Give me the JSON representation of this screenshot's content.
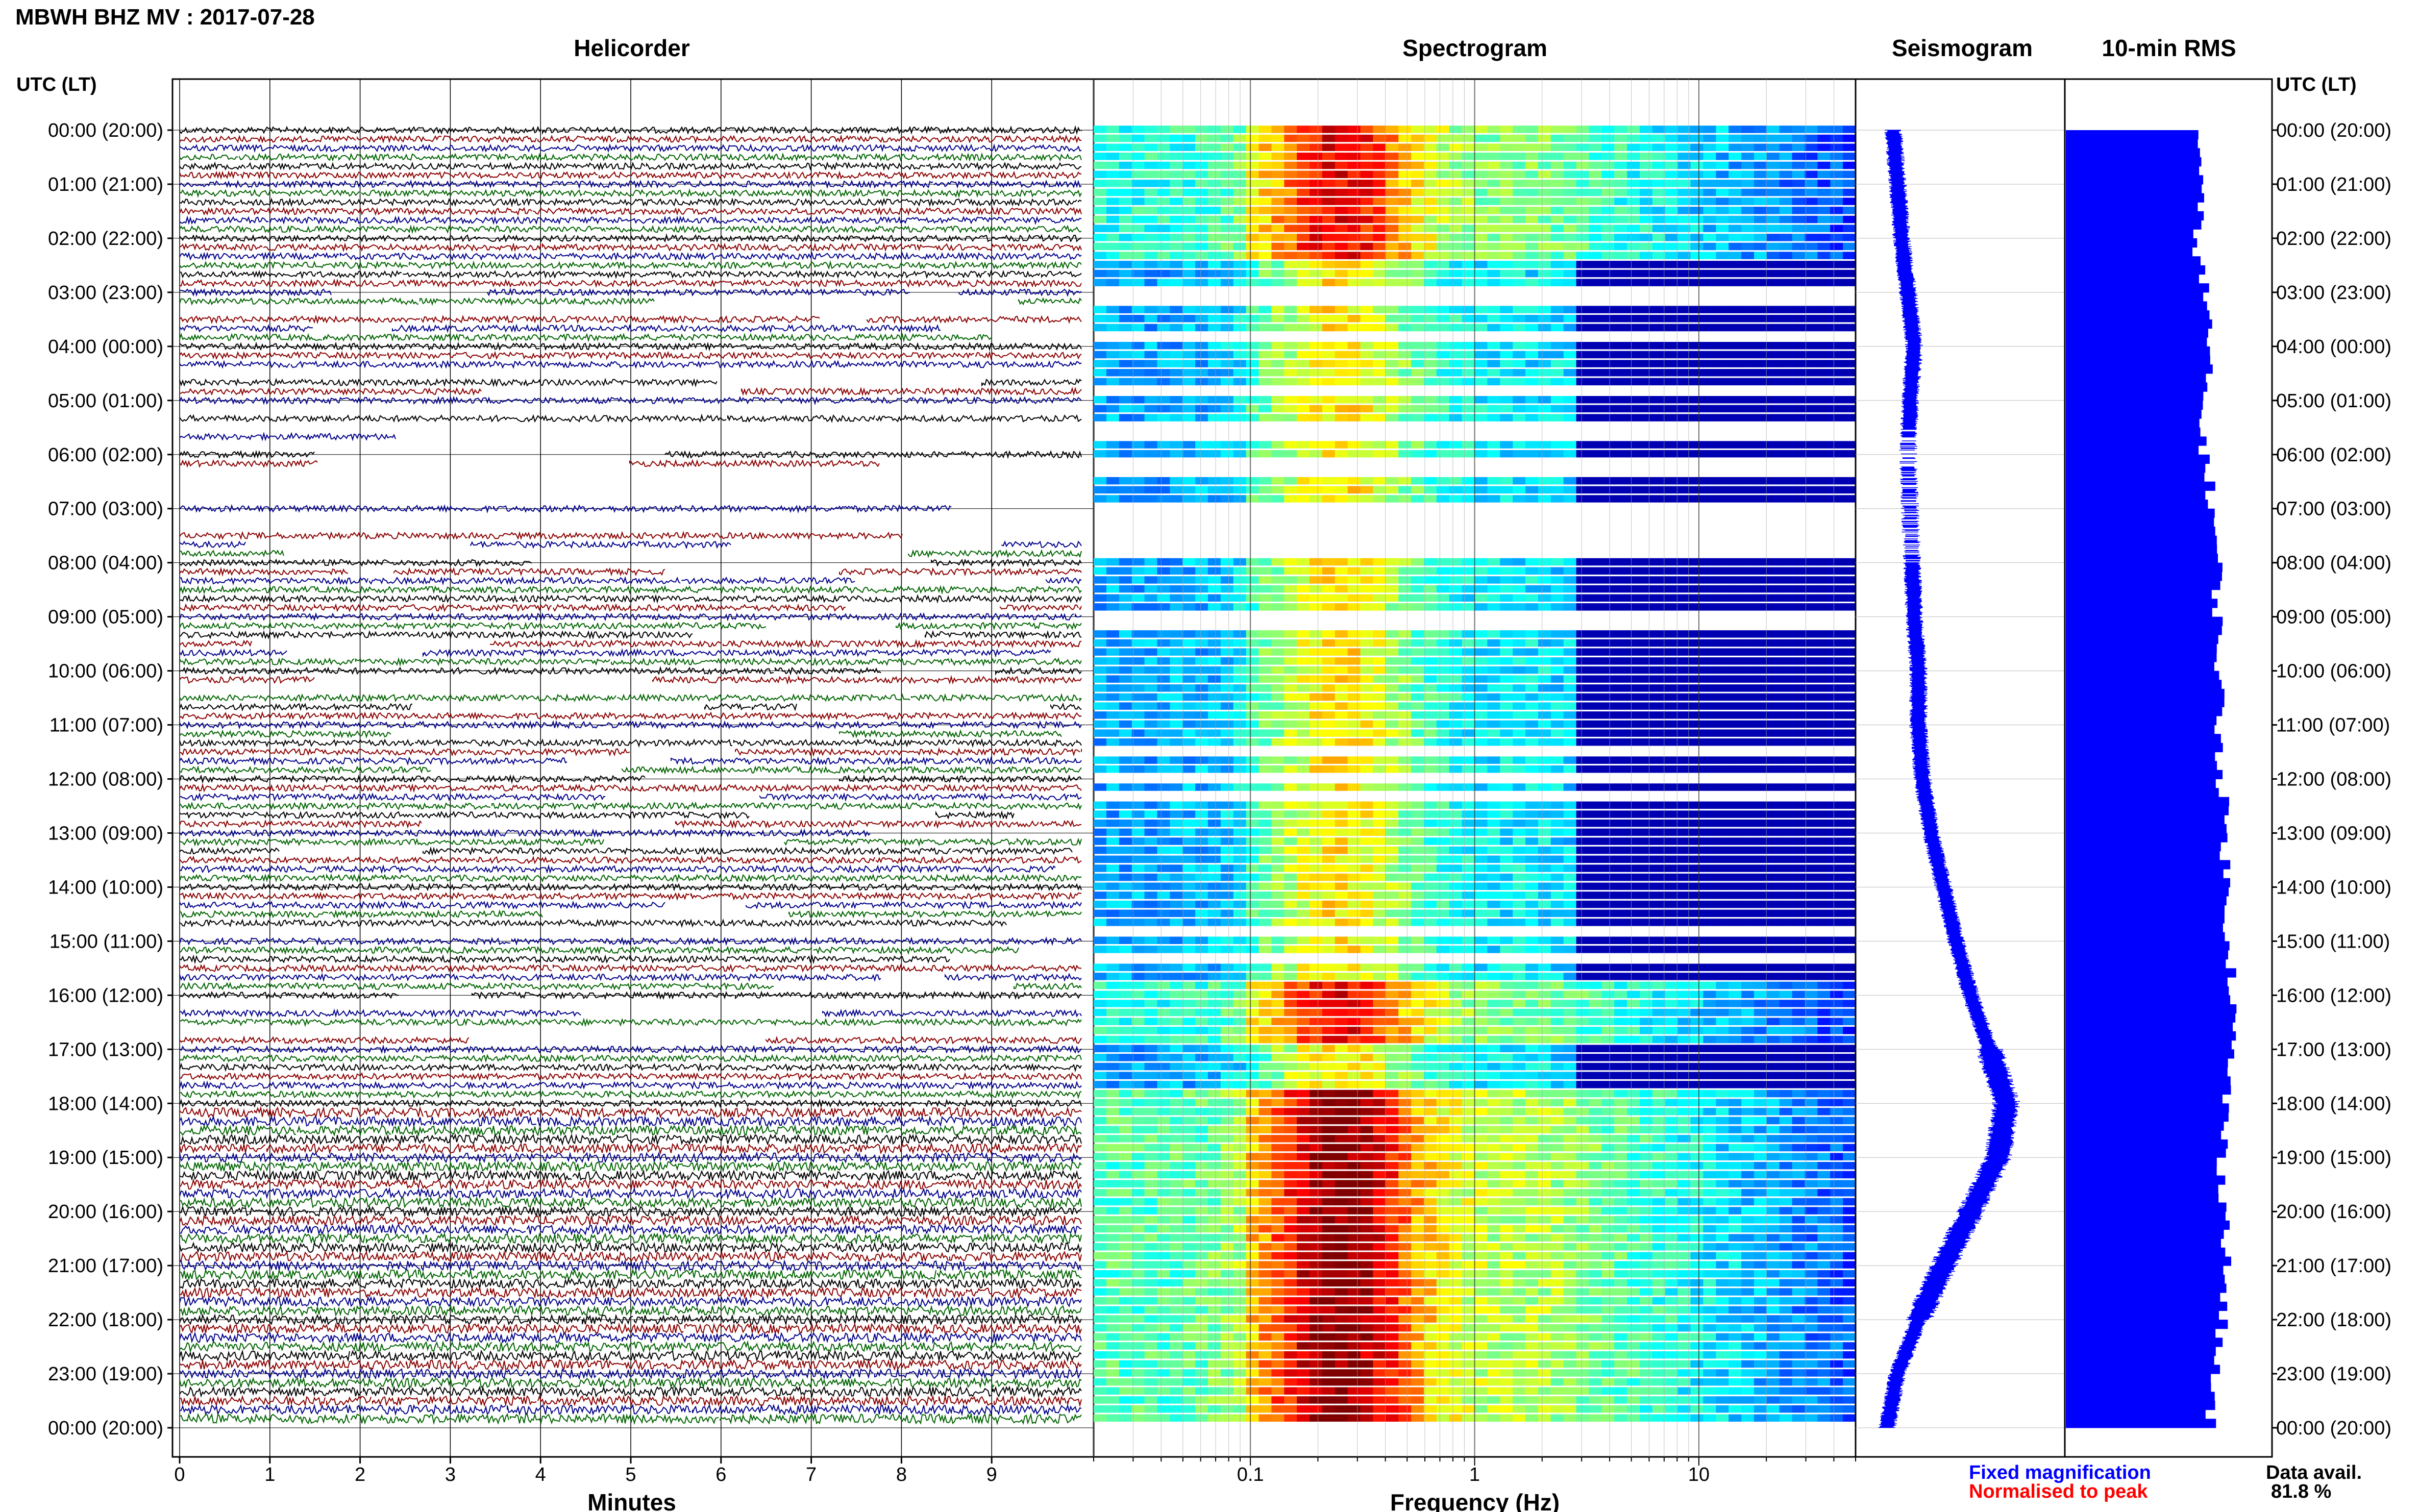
{
  "header": {
    "title": "MBWH BHZ MV : 2017-07-28"
  },
  "panels": {
    "helicorder": "Helicorder",
    "spectrogram": "Spectrogram",
    "seismogram": "Seismogram",
    "rms": "10-min RMS"
  },
  "axes": {
    "left_label": "UTC (LT)",
    "right_label": "UTC (LT)",
    "time_ticks": [
      "00:00 (20:00)",
      "01:00 (21:00)",
      "02:00 (22:00)",
      "03:00 (23:00)",
      "04:00 (00:00)",
      "05:00 (01:00)",
      "06:00 (02:00)",
      "07:00 (03:00)",
      "08:00 (04:00)",
      "09:00 (05:00)",
      "10:00 (06:00)",
      "11:00 (07:00)",
      "12:00 (08:00)",
      "13:00 (09:00)",
      "14:00 (10:00)",
      "15:00 (11:00)",
      "16:00 (12:00)",
      "17:00 (13:00)",
      "18:00 (14:00)",
      "19:00 (15:00)",
      "20:00 (16:00)",
      "21:00 (17:00)",
      "22:00 (18:00)",
      "23:00 (19:00)",
      "00:00 (20:00)"
    ],
    "minutes_ticks": [
      "0",
      "1",
      "2",
      "3",
      "4",
      "5",
      "6",
      "7",
      "8",
      "9"
    ],
    "minutes_label": "Minutes",
    "freq_ticks": [
      "0.1",
      "1",
      "10"
    ],
    "freq_label": "Frequency (Hz)"
  },
  "legend": {
    "fixed": "Fixed magnification",
    "normalised": "Normalised to peak",
    "fixed_color": "#0000ff",
    "normalised_color": "#ff0000"
  },
  "availability": {
    "label": "Data avail.",
    "value": "81.8 %"
  },
  "colors": {
    "trace_colors": [
      "#000000",
      "#8b0000",
      "#00008b",
      "#006400"
    ],
    "seismogram": "#0000ff",
    "rms": "#0000ff"
  },
  "chart_data": [
    {
      "type": "line",
      "title": "Helicorder",
      "xlabel": "Minutes",
      "xlim": [
        0,
        10
      ],
      "description_rows": "one trace per 10-minute window, 144 rows over 24 hours, colors cycle black, dark red, dark blue, green",
      "gaps": [
        {
          "hour": 3.0,
          "hour_end": 3.5,
          "coverage": 0.55
        },
        {
          "hour": 3.5,
          "hour_end": 5.5,
          "coverage": 0.8
        },
        {
          "hour": 5.5,
          "hour_end": 8.0,
          "coverage": 0.35
        },
        {
          "hour": 8.0,
          "hour_end": 17.0,
          "coverage": 0.85
        }
      ]
    },
    {
      "type": "heatmap",
      "title": "Spectrogram",
      "xlabel": "Frequency (Hz)",
      "xscale": "log",
      "xlim": [
        0.02,
        50
      ],
      "peak_frequency_band": [
        0.2,
        0.3
      ],
      "colormap": "jet"
    },
    {
      "type": "line",
      "title": "Seismogram",
      "hours": [
        0,
        1,
        2,
        3,
        4,
        5,
        6,
        7,
        8,
        9,
        10,
        11,
        12,
        13,
        14,
        15,
        16,
        17,
        18,
        19,
        20,
        21,
        22,
        23,
        24
      ],
      "offset": [
        0.18,
        0.2,
        0.22,
        0.25,
        0.28,
        0.26,
        0.25,
        0.26,
        0.27,
        0.28,
        0.3,
        0.3,
        0.32,
        0.36,
        0.42,
        0.48,
        0.55,
        0.64,
        0.72,
        0.68,
        0.55,
        0.42,
        0.3,
        0.2,
        0.15
      ]
    },
    {
      "type": "bar",
      "title": "10-min RMS",
      "hours": [
        0,
        1,
        2,
        3,
        4,
        5,
        6,
        7,
        8,
        9,
        10,
        11,
        12,
        13,
        14,
        15,
        16,
        17,
        18,
        19,
        20,
        21,
        22,
        23,
        24
      ],
      "rms": [
        0.66,
        0.65,
        0.64,
        0.68,
        0.7,
        0.66,
        0.68,
        0.72,
        0.74,
        0.74,
        0.75,
        0.75,
        0.76,
        0.78,
        0.78,
        0.8,
        0.82,
        0.8,
        0.78,
        0.76,
        0.78,
        0.78,
        0.76,
        0.72,
        0.7
      ]
    }
  ]
}
